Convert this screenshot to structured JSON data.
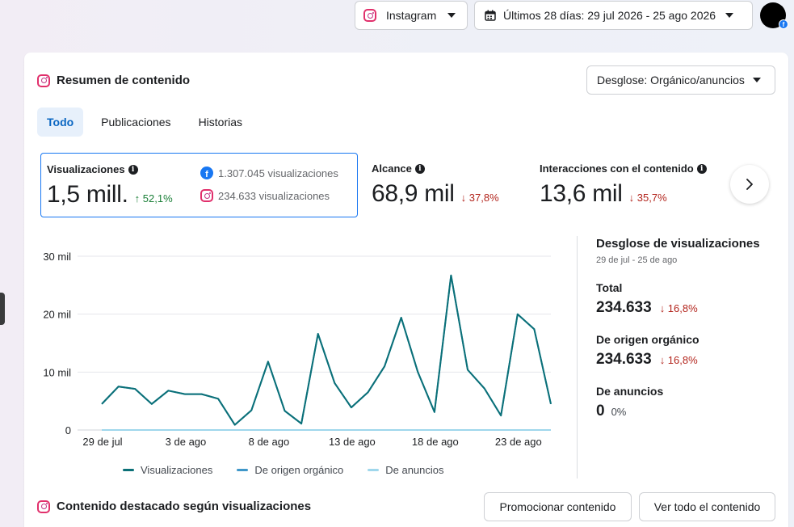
{
  "topbar": {
    "platform_label": "Instagram",
    "date_range_label": "Últimos 28 días: 29 jul 2026 - 25 ago 2026"
  },
  "card": {
    "title": "Resumen de contenido",
    "breakdown_label": "Desglose: Orgánico/anuncios",
    "tabs": [
      {
        "label": "Todo",
        "active": true
      },
      {
        "label": "Publicaciones",
        "active": false
      },
      {
        "label": "Historias",
        "active": false
      }
    ]
  },
  "metrics": {
    "views": {
      "label": "Visualizaciones",
      "value": "1,5 mill.",
      "delta": "↑ 52,1%",
      "facebook": "1.307.045 visualizaciones",
      "instagram": "234.633 visualizaciones"
    },
    "reach": {
      "label": "Alcance",
      "value": "68,9 mil",
      "delta": "↓ 37,8%"
    },
    "interactions": {
      "label": "Interacciones con el contenido",
      "value": "13,6 mil",
      "delta": "↓ 35,7%"
    }
  },
  "side": {
    "title": "Desglose de visualizaciones",
    "date": "29 de jul - 25 de ago",
    "total_label": "Total",
    "total_value": "234.633",
    "total_delta": "↓ 16,8%",
    "organic_label": "De origen orgánico",
    "organic_value": "234.633",
    "organic_delta": "↓ 16,8%",
    "ads_label": "De anuncios",
    "ads_value": "0",
    "ads_pct": "0%"
  },
  "chart_data": {
    "type": "line",
    "y_ticks": [
      "30 mil",
      "20 mil",
      "10 mil",
      "0"
    ],
    "x_ticks": [
      "29 de jul",
      "3 de ago",
      "8 de ago",
      "13 de ago",
      "18 de ago",
      "23 de ago"
    ],
    "ylim": [
      0,
      30000
    ],
    "x": [
      "29 jul",
      "30 jul",
      "31 jul",
      "1 ago",
      "2 ago",
      "3 ago",
      "4 ago",
      "5 ago",
      "6 ago",
      "7 ago",
      "8 ago",
      "9 ago",
      "10 ago",
      "11 ago",
      "12 ago",
      "13 ago",
      "14 ago",
      "15 ago",
      "16 ago",
      "17 ago",
      "18 ago",
      "19 ago",
      "20 ago",
      "21 ago",
      "22 ago",
      "23 ago",
      "24 ago",
      "25 ago"
    ],
    "series": [
      {
        "name": "Visualizaciones",
        "color": "#0b7077",
        "values": [
          4500,
          7500,
          7100,
          4500,
          6800,
          6200,
          6200,
          5400,
          900,
          3400,
          11800,
          3300,
          1100,
          16600,
          8100,
          3900,
          6500,
          11000,
          19400,
          10000,
          3100,
          26700,
          10400,
          7200,
          2500,
          20000,
          17400,
          4500
        ]
      },
      {
        "name": "De origen orgánico",
        "color": "#3f97c9",
        "values": [
          4500,
          7500,
          7100,
          4500,
          6800,
          6200,
          6200,
          5400,
          900,
          3400,
          11800,
          3300,
          1100,
          16600,
          8100,
          3900,
          6500,
          11000,
          19400,
          10000,
          3100,
          26700,
          10400,
          7200,
          2500,
          20000,
          17400,
          4500
        ]
      },
      {
        "name": "De anuncios",
        "color": "#9fd7ec",
        "values": [
          0,
          0,
          0,
          0,
          0,
          0,
          0,
          0,
          0,
          0,
          0,
          0,
          0,
          0,
          0,
          0,
          0,
          0,
          0,
          0,
          0,
          0,
          0,
          0,
          0,
          0,
          0,
          0
        ]
      }
    ]
  },
  "bottom": {
    "title": "Contenido destacado según visualizaciones",
    "promote_label": "Promocionar contenido",
    "see_all_label": "Ver todo el contenido"
  }
}
